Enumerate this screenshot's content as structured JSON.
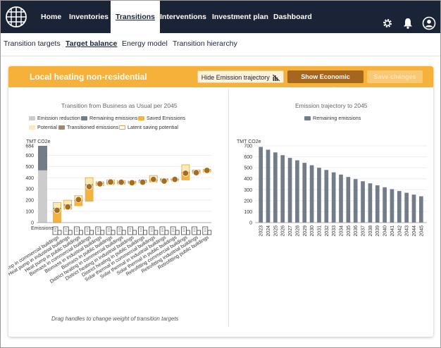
{
  "nav": {
    "items": [
      {
        "label": "Home",
        "active": false
      },
      {
        "label": "Inventories",
        "active": false
      },
      {
        "label": "Transitions",
        "active": true
      },
      {
        "label": "Interventions",
        "active": false
      },
      {
        "label": "Investment plan",
        "active": false
      },
      {
        "label": "Dashboard",
        "active": false
      }
    ]
  },
  "subnav": {
    "items": [
      {
        "label": "Transition targets",
        "active": false
      },
      {
        "label": "Target balance",
        "active": true
      },
      {
        "label": "Energy model",
        "active": false
      },
      {
        "label": "Transition hierarchy",
        "active": false
      }
    ]
  },
  "card": {
    "title": "Local heating non-residential",
    "hide_button": "Hide Emission trajectory",
    "econ_button": "Show Economic scenario",
    "save_button": "Save changes",
    "hint": "Drag handles to change weight of transition targets"
  },
  "colors": {
    "accent": "#f6b13b",
    "topbar": "#1b2436",
    "emission_reduction": "#cccccc",
    "remaining": "#737d8a",
    "saved": "#f4b33f",
    "potential": "#fbe9b8",
    "transitioned": "#9b8b6c",
    "handle": "#a86c1d"
  },
  "left_chart": {
    "title": "Transition from Business as Usual per 2045",
    "legend": [
      {
        "label": "Emission reduction",
        "color": "#cccccc",
        "outline": false
      },
      {
        "label": "Remaining emissions",
        "color": "#737d8a",
        "outline": false
      },
      {
        "label": "Saved Emissions",
        "color": "#f4b33f",
        "outline": false
      },
      {
        "label": "Potential",
        "color": "#fbe9b8",
        "outline": false
      },
      {
        "label": "Transitioned emissions",
        "color": "#9b8b6c",
        "outline": false
      },
      {
        "label": "Latent saving potential",
        "color": "#ffffff",
        "outline": true
      }
    ],
    "ylabel": "TMT CO2e",
    "yticks": [
      "684",
      "600",
      "500",
      "400",
      "300",
      "200",
      "100",
      "0"
    ],
    "first_label": "Emissions"
  },
  "right_chart": {
    "title": "Emission trajectory to 2045",
    "legend_label": "Remaining emissions",
    "ylabel": "TMT CO2e",
    "yticks": [
      "700",
      "600",
      "500",
      "400",
      "300",
      "200",
      "100",
      "0"
    ]
  },
  "chart_data": [
    {
      "type": "bar",
      "title": "Transition from Business as Usual per 2045",
      "ylabel": "TMT CO2e",
      "ylim": [
        0,
        684
      ],
      "baseline": {
        "label": "Emissions",
        "remaining": 684,
        "reduction": 465
      },
      "categories": [
        "Heat pump in commercial buildings",
        "Heat pump in industrial buildings",
        "Heat pump in public buildings",
        "Biomass in commercial buildings",
        "Biomass in industrial buildings",
        "Biomass in public buildings",
        "District heating in commercial buildings",
        "District heating in industrial buildings",
        "District heating in public buildings",
        "Solar thermal in commercial buildings",
        "Solar thermal in industrial buildings",
        "Solar thermal in public buildings",
        "Retrofitting commercial buildings",
        "Retrofitting industrial buildings",
        "Retrofitting public buildings"
      ],
      "saved_from": [
        0,
        120,
        150,
        190,
        330,
        345,
        348,
        350,
        355,
        370,
        368,
        380,
        380,
        440,
        450
      ],
      "saved_to": [
        120,
        150,
        190,
        330,
        345,
        348,
        350,
        355,
        370,
        370,
        380,
        380,
        440,
        450,
        465
      ],
      "potential_top": [
        180,
        200,
        240,
        400,
        365,
        380,
        375,
        370,
        372,
        420,
        390,
        390,
        515,
        470,
        470
      ],
      "handle": [
        110,
        140,
        205,
        320,
        345,
        362,
        360,
        355,
        360,
        385,
        370,
        385,
        440,
        445,
        465
      ]
    },
    {
      "type": "bar",
      "title": "Emission trajectory to 2045",
      "ylabel": "TMT CO2e",
      "ylim": [
        0,
        700
      ],
      "series": [
        {
          "name": "Remaining emissions",
          "color": "#737d8a"
        }
      ],
      "categories": [
        "2023",
        "2024",
        "2025",
        "2026",
        "2027",
        "2028",
        "2029",
        "2030",
        "2031",
        "2032",
        "2033",
        "2034",
        "2035",
        "2036",
        "2037",
        "2038",
        "2039",
        "2040",
        "2041",
        "2042",
        "2043",
        "2044",
        "2045"
      ],
      "values": [
        690,
        665,
        640,
        615,
        590,
        568,
        545,
        523,
        500,
        480,
        458,
        438,
        416,
        397,
        377,
        358,
        340,
        322,
        305,
        288,
        272,
        255,
        240
      ]
    }
  ]
}
